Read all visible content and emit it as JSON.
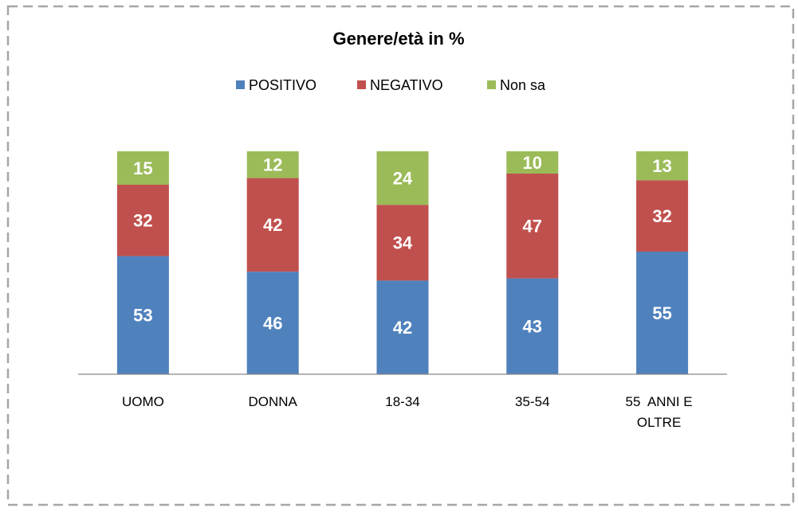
{
  "chart_data": {
    "type": "stacked_bar",
    "title": "Genere/età in %",
    "categories": [
      "UOMO",
      "DONNA",
      "18-34",
      "35-54",
      "55  ANNI E OLTRE"
    ],
    "series": [
      {
        "name": "POSITIVO",
        "color": "#4f81bd",
        "values": [
          53,
          46,
          42,
          43,
          55
        ]
      },
      {
        "name": "NEGATIVO",
        "color": "#c0504d",
        "values": [
          32,
          42,
          34,
          47,
          32
        ]
      },
      {
        "name": "Non sa",
        "color": "#9bbb59",
        "values": [
          15,
          12,
          24,
          10,
          13
        ]
      }
    ],
    "legend": "top"
  }
}
